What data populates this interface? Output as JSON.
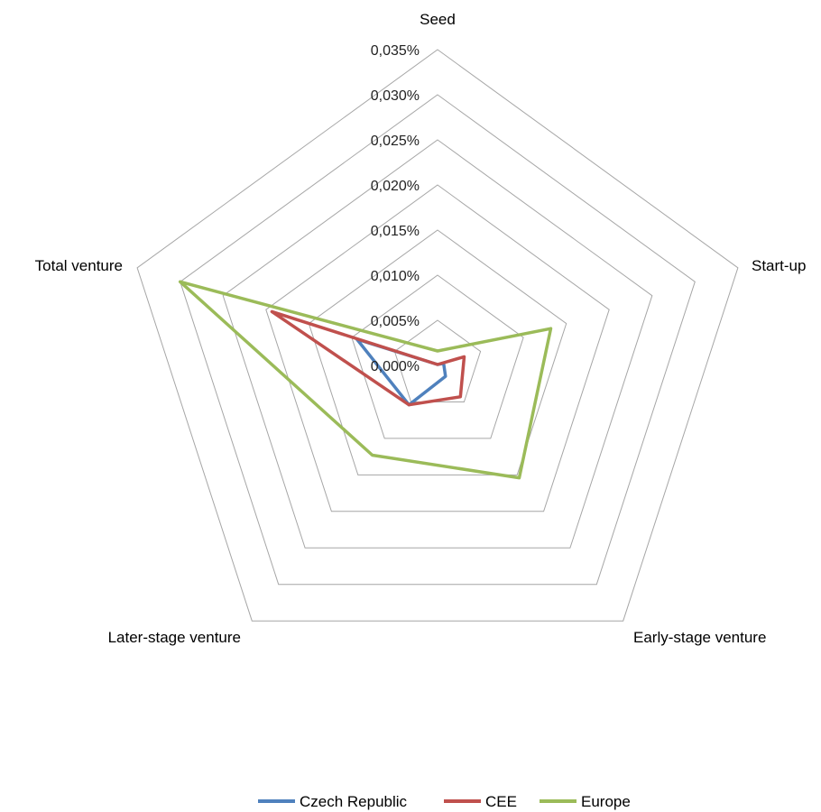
{
  "chart_data": {
    "type": "radar",
    "categories": [
      "Seed",
      "Start-up",
      "Early-stage venture",
      "Later-stage venture",
      "Total venture"
    ],
    "tick_labels": [
      "0,000%",
      "0,005%",
      "0,010%",
      "0,015%",
      "0,020%",
      "0,025%",
      "0,030%",
      "0,035%"
    ],
    "rlim": [
      0,
      0.035
    ],
    "grid": true,
    "legend_position": "bottom",
    "series": [
      {
        "name": "Czech Republic",
        "color": "#4f81bd",
        "values": [
          0.0001,
          0.0007,
          0.0015,
          0.0054,
          0.0094
        ]
      },
      {
        "name": "CEE",
        "color": "#c0504d",
        "values": [
          0.0001,
          0.0031,
          0.0043,
          0.0054,
          0.0193
        ]
      },
      {
        "name": "Europe",
        "color": "#9bbb59",
        "values": [
          0.0016,
          0.0132,
          0.0154,
          0.0123,
          0.03
        ]
      }
    ]
  }
}
